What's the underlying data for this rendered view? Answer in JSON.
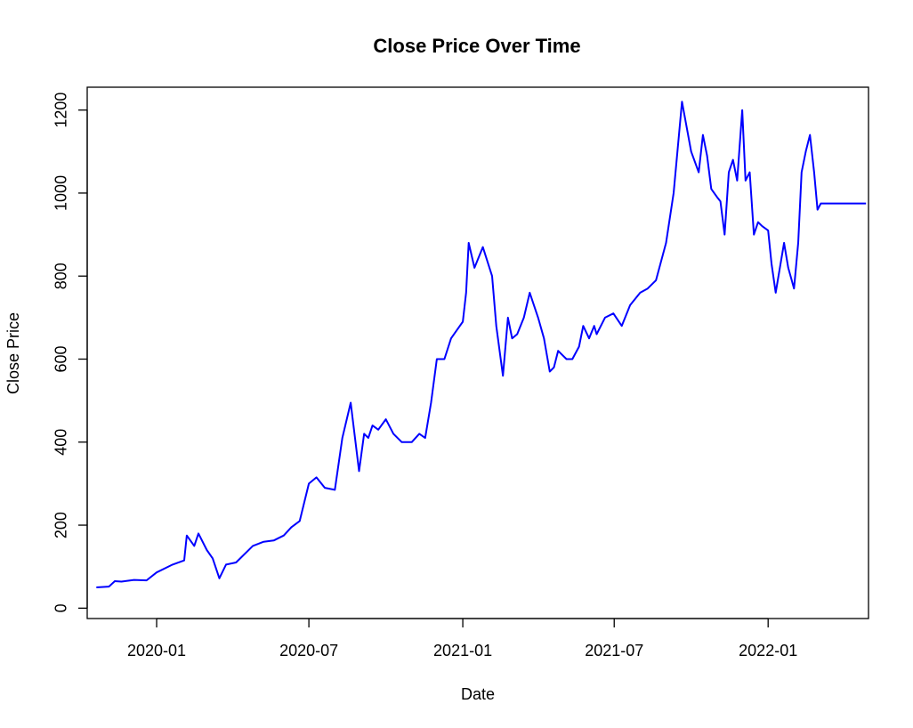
{
  "chart_data": {
    "type": "line",
    "title": "Close Price Over Time",
    "xlabel": "Date",
    "ylabel": "Close Price",
    "xlim": [
      "2019-10-10",
      "2022-05-01"
    ],
    "ylim": [
      -25,
      1255
    ],
    "x_ticks": [
      "2020-01-01",
      "2020-07-01",
      "2021-01-01",
      "2021-07-01",
      "2022-01-01"
    ],
    "x_tick_labels": [
      "2020-01",
      "2020-07",
      "2021-01",
      "2021-07",
      "2022-01"
    ],
    "y_ticks": [
      0,
      200,
      400,
      600,
      800,
      1000,
      1200
    ],
    "y_tick_labels": [
      "0",
      "200",
      "400",
      "600",
      "800",
      "1000",
      "1200"
    ],
    "grid": false,
    "legend": "none",
    "series": [
      {
        "color": "#0000ff",
        "x": [
          "2019-10-21",
          "2019-11-05",
          "2019-11-12",
          "2019-11-20",
          "2019-12-05",
          "2019-12-20",
          "2020-01-01",
          "2020-01-20",
          "2020-02-03",
          "2020-02-06",
          "2020-02-15",
          "2020-02-20",
          "2020-03-01",
          "2020-03-08",
          "2020-03-16",
          "2020-03-24",
          "2020-04-05",
          "2020-04-25",
          "2020-05-08",
          "2020-05-20",
          "2020-06-01",
          "2020-06-10",
          "2020-06-20",
          "2020-07-01",
          "2020-07-10",
          "2020-07-20",
          "2020-08-01",
          "2020-08-10",
          "2020-08-20",
          "2020-08-30",
          "2020-09-05",
          "2020-09-10",
          "2020-09-15",
          "2020-09-22",
          "2020-10-01",
          "2020-10-10",
          "2020-10-20",
          "2020-11-01",
          "2020-11-10",
          "2020-11-17",
          "2020-11-24",
          "2020-12-01",
          "2020-12-10",
          "2020-12-18",
          "2020-12-25",
          "2021-01-01",
          "2021-01-05",
          "2021-01-08",
          "2021-01-15",
          "2021-01-25",
          "2021-02-05",
          "2021-02-10",
          "2021-02-18",
          "2021-02-24",
          "2021-03-01",
          "2021-03-07",
          "2021-03-15",
          "2021-03-22",
          "2021-04-01",
          "2021-04-08",
          "2021-04-15",
          "2021-04-20",
          "2021-04-25",
          "2021-05-05",
          "2021-05-12",
          "2021-05-20",
          "2021-05-25",
          "2021-06-01",
          "2021-06-07",
          "2021-06-10",
          "2021-06-20",
          "2021-06-30",
          "2021-07-10",
          "2021-07-20",
          "2021-08-01",
          "2021-08-10",
          "2021-08-20",
          "2021-09-01",
          "2021-09-10",
          "2021-09-20",
          "2021-10-01",
          "2021-10-10",
          "2021-10-15",
          "2021-10-20",
          "2021-10-25",
          "2021-11-01",
          "2021-11-05",
          "2021-11-10",
          "2021-11-15",
          "2021-11-20",
          "2021-11-25",
          "2021-12-01",
          "2021-12-05",
          "2021-12-10",
          "2021-12-15",
          "2021-12-20",
          "2021-12-25",
          "2022-01-01",
          "2022-01-05",
          "2022-01-10",
          "2022-01-20",
          "2022-01-25",
          "2022-02-01",
          "2022-02-06",
          "2022-02-10",
          "2022-02-15",
          "2022-02-20",
          "2022-02-25",
          "2022-03-01",
          "2022-03-05",
          "2022-03-10",
          "2022-03-14",
          "2022-03-20",
          "2022-03-28",
          "2022-04-04",
          "2022-04-10",
          "2022-04-15",
          "2022-04-22",
          "2022-04-28"
        ],
        "y": [
          50,
          52,
          65,
          64,
          68,
          67,
          86,
          105,
          115,
          175,
          150,
          180,
          140,
          120,
          72,
          105,
          110,
          150,
          160,
          163,
          175,
          195,
          210,
          300,
          315,
          290,
          285,
          410,
          495,
          330,
          420,
          410,
          440,
          430,
          455,
          420,
          400,
          400,
          420,
          410,
          495,
          600,
          600,
          650,
          670,
          690,
          760,
          880,
          820,
          870,
          800,
          680,
          560,
          700,
          650,
          660,
          700,
          760,
          700,
          650,
          570,
          580,
          620,
          600,
          600,
          630,
          680,
          650,
          680,
          660,
          700,
          710,
          680,
          730,
          760,
          770,
          790,
          880,
          1000,
          1220,
          1100,
          1050,
          1140,
          1090,
          1010,
          990,
          980,
          900,
          1050,
          1080,
          1030,
          1200,
          1030,
          1050,
          900,
          930,
          920,
          910,
          830,
          760,
          880,
          820,
          770,
          880,
          1050,
          1100,
          1140,
          1050,
          960,
          975,
          975,
          975,
          975,
          975,
          975,
          975,
          975,
          975,
          975
        ]
      }
    ]
  }
}
